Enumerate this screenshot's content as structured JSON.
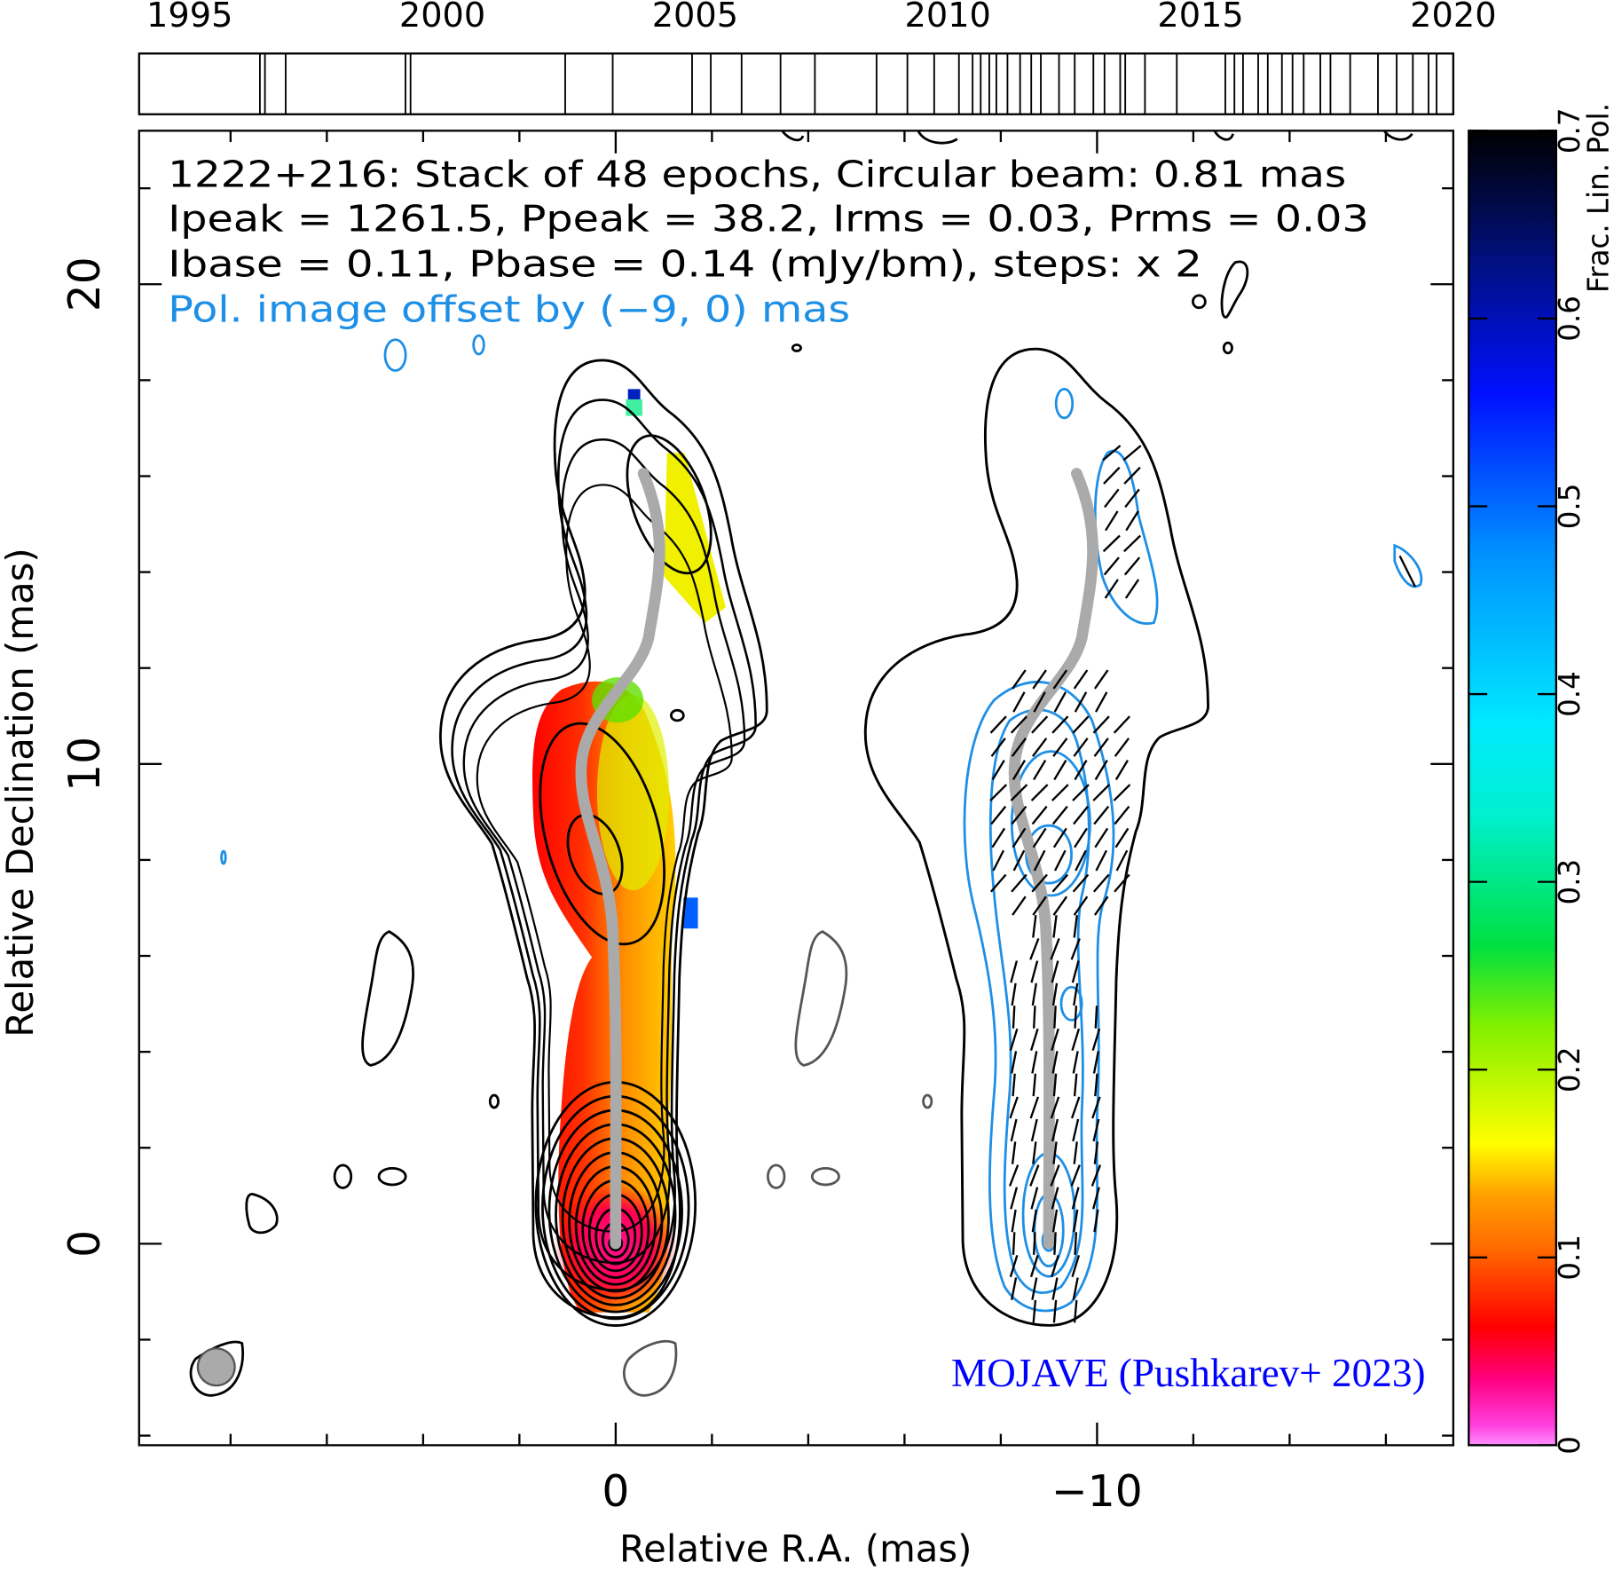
{
  "chart_data": {
    "type": "image",
    "annotations": [
      "1222+216: Stack of 48 epochs, Circular beam: 0.81 mas",
      "Ipeak = 1261.5, Ppeak = 38.2, Irms = 0.03, Prms = 0.03",
      "Ibase = 0.11, Pbase = 0.14 (mJy/bm), steps: x 2",
      "Pol. image offset by (−9, 0) mas"
    ],
    "credit": "MOJAVE (Pushkarev+ 2023)",
    "xlabel": "Relative R.A. (mas)",
    "ylabel": "Relative Declination (mas)",
    "xlim": [
      9.9,
      -17.4
    ],
    "xticks": [
      0,
      {
        "value": -10,
        "label": "−10"
      }
    ],
    "xminorticks": [
      8,
      6,
      4,
      2,
      -2,
      -4,
      -6,
      -8,
      -12,
      -14,
      -16
    ],
    "ylim": [
      -4.2,
      23.2
    ],
    "yticks": [
      0,
      10,
      20
    ],
    "yminorticks": [
      -4,
      -2,
      2,
      4,
      6,
      8,
      12,
      14,
      16,
      18,
      22
    ],
    "timeline": {
      "xlim": [
        1994,
        2020
      ],
      "xticks": [
        1995,
        2000,
        2005,
        2010,
        2015,
        2020
      ],
      "epochs": [
        1996.39,
        1996.49,
        1996.9,
        1999.27,
        1999.37,
        2002.43,
        2003.37,
        2004.94,
        2005.31,
        2005.92,
        2006.69,
        2007.37,
        2008.59,
        2009.2,
        2009.73,
        2010.22,
        2010.49,
        2010.65,
        2010.82,
        2010.96,
        2011.18,
        2011.43,
        2011.65,
        2011.84,
        2012.2,
        2012.51,
        2012.88,
        2013.1,
        2013.41,
        2013.51,
        2013.9,
        2014.53,
        2015.49,
        2015.67,
        2015.84,
        2016.14,
        2016.33,
        2016.61,
        2016.82,
        2017.04,
        2017.37,
        2017.57,
        2017.96,
        2018.51,
        2018.88,
        2019.2,
        2019.51,
        2019.67
      ]
    },
    "colorbar": {
      "label": "Frac. Lin. Pol.",
      "ylim": [
        0,
        0.7
      ],
      "yticks": [
        0,
        0.1,
        0.2,
        0.3,
        0.4,
        0.5,
        0.6,
        0.7
      ]
    }
  }
}
